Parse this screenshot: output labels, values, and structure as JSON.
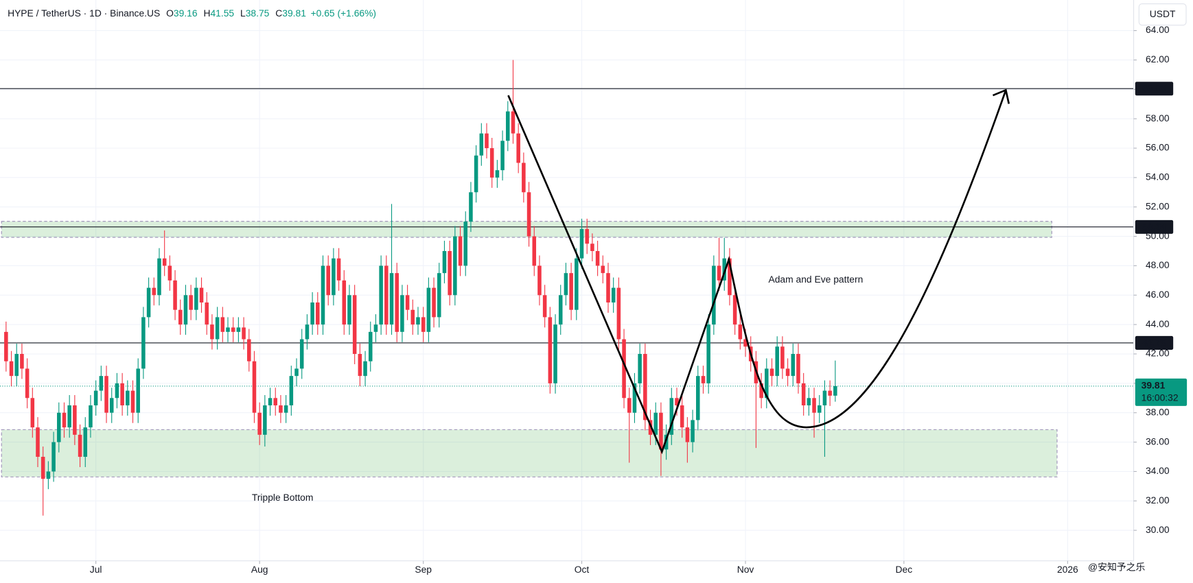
{
  "chart_data": {
    "type": "candlestick",
    "title": "HYPE / TetherUS · 1D · Binance.US",
    "header": [
      {
        "label": "O",
        "value": 39.16
      },
      {
        "label": "H",
        "value": 41.55
      },
      {
        "label": "L",
        "value": 38.75
      },
      {
        "label": "C",
        "value": 39.81
      }
    ],
    "change": "+0.65 (+1.66%)",
    "currency": "USDT",
    "up_color": "#089981",
    "down_color": "#f23645",
    "xlim": [
      -1.15,
      213.5
    ],
    "xticks": [
      {
        "value": 17,
        "label": "Jul"
      },
      {
        "value": 48,
        "label": "Aug"
      },
      {
        "value": 79,
        "label": "Sep"
      },
      {
        "value": 109,
        "label": "Oct"
      },
      {
        "value": 140,
        "label": "Nov"
      },
      {
        "value": 170,
        "label": "Dec"
      },
      {
        "value": 201,
        "label": "2026"
      }
    ],
    "ylim": [
      27.92,
      66.08
    ],
    "yticks": [
      {
        "value": 30,
        "label": "30.00"
      },
      {
        "value": 32,
        "label": "32.00"
      },
      {
        "value": 34,
        "label": "34.00"
      },
      {
        "value": 36,
        "label": "36.00"
      },
      {
        "value": 38,
        "label": "38.00"
      },
      {
        "value": 40,
        "label": "40.00"
      },
      {
        "value": 42,
        "label": "42.00"
      },
      {
        "value": 44,
        "label": "44.00"
      },
      {
        "value": 46,
        "label": "46.00"
      },
      {
        "value": 48,
        "label": "48.00"
      },
      {
        "value": 50,
        "label": "50.00"
      },
      {
        "value": 52,
        "label": "52.00"
      },
      {
        "value": 54,
        "label": "54.00"
      },
      {
        "value": 56,
        "label": "56.00"
      },
      {
        "value": 58,
        "label": "58.00"
      },
      {
        "value": 60,
        "label": "60.00"
      },
      {
        "value": 62,
        "label": "62.00"
      },
      {
        "value": 64,
        "label": "64.00"
      }
    ],
    "grid": true,
    "open": [
      43.5,
      41.5,
      40.5,
      42,
      41,
      39,
      37,
      35,
      33.5,
      34,
      36,
      38,
      37,
      38.5,
      36.5,
      35,
      37,
      38.5,
      39.5,
      40.5,
      38,
      39,
      40,
      38.5,
      39.5,
      38,
      41,
      44.5,
      46.5,
      46,
      48.5,
      48,
      47,
      45,
      44,
      46,
      45,
      46.5,
      45.5,
      44,
      43,
      44.5,
      43.5,
      43.8,
      43.5,
      43.8,
      43,
      41.5,
      38,
      36.5,
      38.5,
      39,
      38.5,
      38,
      38.5,
      40.5,
      41,
      43,
      44,
      45.5,
      44,
      48,
      46,
      48.5,
      47,
      44,
      46,
      42,
      40.5,
      41.5,
      43.5,
      44,
      48,
      44,
      47.5,
      43.5,
      46,
      45,
      44,
      44.5,
      43.5,
      46.5,
      44.5,
      47.5,
      49,
      46,
      50,
      48,
      51,
      53,
      55.5,
      57,
      56,
      54,
      54.5,
      56.5,
      58.5,
      57,
      55,
      53,
      50,
      48,
      46,
      44.5,
      40,
      44,
      46,
      47.5,
      45,
      48.5,
      50.5,
      49.5,
      49,
      48,
      47.5,
      45.5,
      46.5,
      43,
      39,
      38,
      40,
      42,
      37.5,
      36.5,
      38,
      35.5,
      36.5,
      39,
      38.5,
      37,
      36,
      37.5,
      40.5,
      40,
      44,
      48,
      47,
      48.5,
      46,
      44,
      43,
      42.5,
      41.5,
      40,
      39,
      41,
      40.5,
      42.5,
      41,
      40.5,
      42,
      40,
      38.5,
      39,
      38,
      38.5,
      39.5,
      39.16
    ],
    "high": [
      44.2,
      42.2,
      42.7,
      42.7,
      41.7,
      39.7,
      37.7,
      35.7,
      34.7,
      36.7,
      38.7,
      38.7,
      39.2,
      39.2,
      37.2,
      37.7,
      39.2,
      40.2,
      41.2,
      41.2,
      39.7,
      40.7,
      40.7,
      40.2,
      40.2,
      41.7,
      45.2,
      47.2,
      47.2,
      49.2,
      50.4,
      48.7,
      47.7,
      45.7,
      46.7,
      46.7,
      47.2,
      47.2,
      46.2,
      44.7,
      45.2,
      45.2,
      44.5,
      44.5,
      44.5,
      44.5,
      43.7,
      42.2,
      38.7,
      39.2,
      39.7,
      39.7,
      39.2,
      39.2,
      41.2,
      41.7,
      43.7,
      44.7,
      46.2,
      46.2,
      48.7,
      48.7,
      49.2,
      49.2,
      47.7,
      46.7,
      46.7,
      42.7,
      42.2,
      44.2,
      44.7,
      48.7,
      48.7,
      52.2,
      48.2,
      46.7,
      46.7,
      45.7,
      45.2,
      45.2,
      47.2,
      47.2,
      48.2,
      49.7,
      49.7,
      50.7,
      50.7,
      51.7,
      53.7,
      56.2,
      57.7,
      57.7,
      56.7,
      55.2,
      57.2,
      59.2,
      62,
      57.7,
      55.7,
      53.7,
      50.7,
      48.7,
      46.7,
      45.2,
      44.7,
      46.7,
      48.2,
      48.2,
      49.2,
      51.2,
      51.2,
      50.2,
      49.7,
      48.7,
      48.2,
      47.2,
      47.2,
      43.7,
      39.7,
      40.7,
      42.7,
      42.7,
      38.2,
      38.7,
      38.7,
      37.2,
      39.7,
      39.7,
      39.2,
      37.7,
      38.2,
      41.2,
      41.2,
      44.7,
      48.7,
      49.9,
      49.9,
      49.2,
      46.7,
      44.7,
      43.7,
      43.2,
      42.2,
      40.7,
      41.7,
      41.7,
      43.2,
      43.2,
      41.7,
      42.7,
      42.7,
      40.7,
      39.7,
      39.7,
      39.2,
      40.2,
      40.2,
      41.55
    ],
    "low": [
      40.8,
      39.8,
      39.8,
      40.3,
      38.3,
      36.3,
      34.3,
      31,
      32.8,
      33.3,
      35.3,
      36.3,
      36.3,
      35.8,
      34.3,
      34.3,
      36.3,
      37.8,
      38.8,
      37.3,
      37.3,
      38.3,
      37.8,
      37.8,
      37.3,
      37.3,
      40.3,
      43.8,
      45.3,
      45.3,
      47.3,
      46.3,
      44.3,
      43.3,
      43.3,
      44.3,
      44.3,
      44.8,
      43.3,
      42.3,
      42.3,
      42.8,
      42.8,
      42.8,
      42.8,
      42.3,
      40.8,
      37.3,
      35.8,
      35.7,
      37.8,
      37.8,
      37.3,
      37.3,
      37.8,
      39.8,
      40.3,
      42.3,
      43.3,
      43.3,
      43.3,
      45.3,
      45.3,
      46.3,
      43.3,
      43.3,
      41.3,
      39.8,
      39.8,
      40.8,
      42.8,
      43.3,
      43.3,
      43.3,
      42.8,
      42.8,
      44.3,
      43.3,
      43.3,
      42.8,
      42.8,
      43.8,
      43.8,
      46.8,
      45.3,
      45.3,
      47.3,
      47.3,
      50.3,
      52.3,
      54.8,
      55.3,
      53.3,
      53.3,
      53.8,
      55.8,
      56.3,
      54.3,
      52.3,
      49.3,
      47.3,
      45.3,
      43.8,
      39.3,
      39.3,
      43.3,
      45.3,
      44.3,
      44.3,
      47.8,
      48.8,
      48.3,
      47.3,
      46.8,
      44.8,
      44.8,
      42.3,
      38.3,
      34.6,
      37.3,
      39.3,
      36.8,
      35.8,
      35.8,
      33.7,
      34.8,
      35.8,
      37.8,
      36.3,
      34.6,
      35.3,
      36.8,
      39.3,
      39.3,
      43.3,
      46.3,
      46.3,
      45.3,
      43.3,
      42.3,
      41.8,
      40.8,
      35.6,
      38.3,
      38.3,
      39.8,
      39.8,
      40.3,
      39.8,
      39.8,
      39.3,
      37.8,
      37.8,
      36.3,
      37.3,
      35,
      38.46,
      38.75
    ],
    "close": [
      41.5,
      40.5,
      42,
      41,
      39,
      37,
      35,
      33.5,
      34,
      36,
      38,
      37,
      38.5,
      36.5,
      35,
      37,
      38.5,
      39.5,
      40.5,
      38,
      39,
      40,
      38.5,
      39.5,
      38,
      41,
      44.5,
      46.5,
      46,
      48.5,
      48,
      47,
      45,
      44,
      46,
      45,
      46.5,
      45.5,
      44,
      43,
      44.5,
      43.5,
      43.8,
      43.5,
      43.8,
      43,
      41.5,
      38,
      36.5,
      38.5,
      39,
      38.5,
      38,
      38.5,
      40.5,
      41,
      43,
      44,
      45.5,
      44,
      48,
      46,
      48.5,
      47,
      44,
      46,
      42,
      40.5,
      41.5,
      43.5,
      44,
      48,
      44,
      47.5,
      43.5,
      46,
      45,
      44,
      44.5,
      43.5,
      46.5,
      44.5,
      47.5,
      49,
      46,
      50,
      48,
      51,
      53,
      55.5,
      57,
      56,
      54,
      54.5,
      56.5,
      58.5,
      57,
      55,
      53,
      50,
      48,
      46,
      44.5,
      40,
      44,
      46,
      47.5,
      45,
      48.5,
      50.5,
      49.5,
      49,
      48,
      47.5,
      45.5,
      46.5,
      43,
      39,
      38,
      40,
      42,
      37.5,
      36.5,
      38,
      35.5,
      36.5,
      39,
      38.5,
      37,
      36,
      37.5,
      40.5,
      40,
      44,
      48,
      47,
      48.5,
      46,
      44,
      43,
      42.5,
      41.5,
      40,
      39,
      41,
      40.5,
      42.5,
      41,
      40.5,
      42,
      40,
      38.5,
      39,
      38,
      38.5,
      39.5,
      39.16,
      39.81
    ],
    "levels": [
      60.05,
      50.64,
      42.75
    ],
    "last": {
      "value": 39.81,
      "countdown": "16:00:32"
    },
    "zones": [
      {
        "range": [
          49.93,
          51.02
        ],
        "end": 198
      },
      {
        "range": [
          33.63,
          36.85
        ],
        "end": 199
      }
    ],
    "annotations": [
      "Adam and Eve pattern",
      "Tripple Bottom"
    ],
    "watermark": "@安知予之乐"
  }
}
